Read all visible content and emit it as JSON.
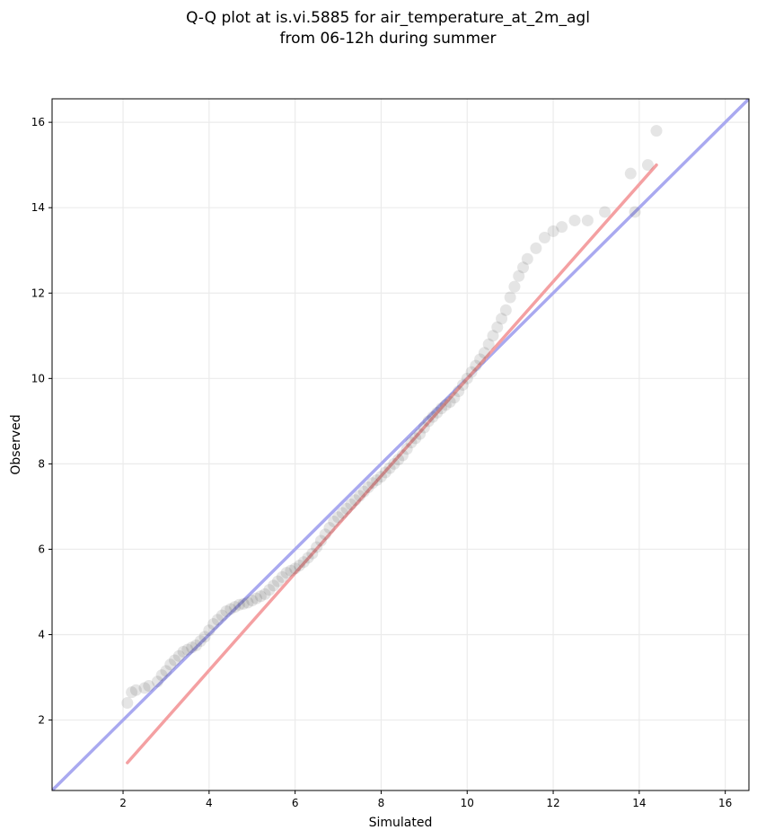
{
  "chart_data": {
    "type": "scatter",
    "title_line1": "Q-Q plot at is.vi.5885 for air_temperature_at_2m_agl",
    "title_line2": "from 06-12h during summer",
    "xlabel": "Simulated",
    "ylabel": "Observed",
    "xlim": [
      0.35,
      16.55
    ],
    "ylim": [
      0.35,
      16.55
    ],
    "xticks": [
      2,
      4,
      6,
      8,
      10,
      12,
      14,
      16
    ],
    "yticks": [
      2,
      4,
      6,
      8,
      10,
      12,
      14,
      16
    ],
    "xtick_labels": [
      "2",
      "4",
      "6",
      "8",
      "10",
      "12",
      "14",
      "16"
    ],
    "ytick_labels": [
      "2",
      "4",
      "6",
      "8",
      "10",
      "12",
      "14",
      "16"
    ],
    "grid": true,
    "colors": {
      "points": "#333333",
      "fit_line": "#f4a0a2",
      "identity_line": "#a9a9f0",
      "grid": "#ebebeb"
    },
    "fit_line": {
      "x": [
        2.1,
        14.4
      ],
      "y": [
        1.0,
        15.0
      ]
    },
    "identity_line": {
      "x": [
        0.35,
        16.55
      ],
      "y": [
        0.35,
        16.55
      ]
    },
    "points_x": [
      2.1,
      2.2,
      2.3,
      2.5,
      2.6,
      2.8,
      2.9,
      3.0,
      3.1,
      3.2,
      3.3,
      3.4,
      3.5,
      3.6,
      3.7,
      3.8,
      3.9,
      4.0,
      4.1,
      4.2,
      4.3,
      4.4,
      4.5,
      4.6,
      4.7,
      4.8,
      4.9,
      5.0,
      5.1,
      5.2,
      5.3,
      5.4,
      5.5,
      5.6,
      5.7,
      5.8,
      5.9,
      6.0,
      6.1,
      6.2,
      6.3,
      6.4,
      6.5,
      6.6,
      6.7,
      6.8,
      6.9,
      7.0,
      7.1,
      7.2,
      7.3,
      7.4,
      7.5,
      7.6,
      7.7,
      7.8,
      7.9,
      8.0,
      8.1,
      8.2,
      8.3,
      8.4,
      8.5,
      8.6,
      8.7,
      8.8,
      8.9,
      9.0,
      9.1,
      9.2,
      9.3,
      9.4,
      9.5,
      9.6,
      9.7,
      9.8,
      9.9,
      10.0,
      10.1,
      10.2,
      10.3,
      10.4,
      10.5,
      10.6,
      10.7,
      10.8,
      10.9,
      11.0,
      11.1,
      11.2,
      11.3,
      11.4,
      11.6,
      11.8,
      12.0,
      12.2,
      12.5,
      12.8,
      13.2,
      13.8,
      13.9,
      14.2,
      14.4
    ],
    "points_y": [
      2.4,
      2.65,
      2.7,
      2.75,
      2.8,
      2.9,
      3.05,
      3.15,
      3.3,
      3.4,
      3.5,
      3.6,
      3.65,
      3.7,
      3.75,
      3.85,
      3.95,
      4.1,
      4.25,
      4.35,
      4.45,
      4.55,
      4.6,
      4.65,
      4.7,
      4.72,
      4.75,
      4.8,
      4.85,
      4.9,
      4.95,
      5.05,
      5.15,
      5.25,
      5.35,
      5.45,
      5.5,
      5.55,
      5.62,
      5.7,
      5.8,
      5.9,
      6.05,
      6.2,
      6.35,
      6.5,
      6.65,
      6.75,
      6.85,
      6.95,
      7.05,
      7.15,
      7.25,
      7.35,
      7.45,
      7.55,
      7.62,
      7.7,
      7.8,
      7.9,
      8.0,
      8.1,
      8.2,
      8.35,
      8.5,
      8.6,
      8.7,
      8.85,
      9.0,
      9.1,
      9.2,
      9.3,
      9.38,
      9.45,
      9.55,
      9.7,
      9.85,
      10.0,
      10.15,
      10.3,
      10.45,
      10.6,
      10.8,
      11.0,
      11.2,
      11.4,
      11.6,
      11.9,
      12.15,
      12.4,
      12.6,
      12.8,
      13.05,
      13.3,
      13.45,
      13.55,
      13.7,
      13.7,
      13.9,
      14.8,
      13.9,
      15.0,
      15.8
    ]
  }
}
